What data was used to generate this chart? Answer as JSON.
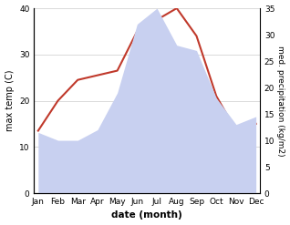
{
  "months": [
    "Jan",
    "Feb",
    "Mar",
    "Apr",
    "May",
    "Jun",
    "Jul",
    "Aug",
    "Sep",
    "Oct",
    "Nov",
    "Dec"
  ],
  "max_temp": [
    13.5,
    20.0,
    24.5,
    25.5,
    26.5,
    35.0,
    37.5,
    40.0,
    34.0,
    21.0,
    13.5,
    15.0
  ],
  "precipitation": [
    11.5,
    10.0,
    10.0,
    12.0,
    19.0,
    32.0,
    35.0,
    28.0,
    27.0,
    18.0,
    13.0,
    14.5
  ],
  "temp_ylim": [
    0,
    40
  ],
  "precip_ylim": [
    0,
    35
  ],
  "temp_color": "#c0392b",
  "precip_fill_color": "#c8d0f0",
  "xlabel": "date (month)",
  "ylabel_left": "max temp (C)",
  "ylabel_right": "med. precipitation (kg/m2)",
  "background_color": "#ffffff"
}
